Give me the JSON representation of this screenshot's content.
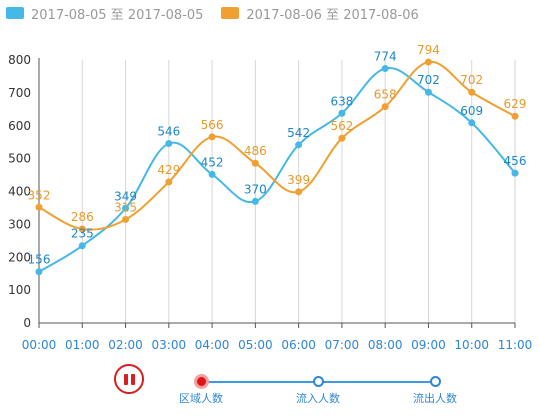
{
  "chart_data": {
    "type": "line",
    "categories": [
      "00:00",
      "01:00",
      "02:00",
      "03:00",
      "04:00",
      "05:00",
      "06:00",
      "07:00",
      "08:00",
      "09:00",
      "10:00",
      "11:00"
    ],
    "series": [
      {
        "name": "2017-08-05 至 2017-08-05",
        "color": "#45b8e8",
        "label_color": "#1e86c8",
        "values": [
          156,
          235,
          349,
          546,
          452,
          370,
          542,
          638,
          774,
          702,
          609,
          456
        ]
      },
      {
        "name": "2017-08-06 至 2017-08-06",
        "color": "#f0a030",
        "label_color": "#e89a2c",
        "values": [
          352,
          286,
          315,
          429,
          566,
          486,
          399,
          562,
          658,
          794,
          702,
          629
        ]
      }
    ],
    "yticks": [
      0,
      100,
      200,
      300,
      400,
      500,
      600,
      700,
      800
    ],
    "ylim": [
      0,
      800
    ],
    "legend_position": "top-left",
    "grid": "vertical"
  },
  "timeline": {
    "stops": [
      "区域人数",
      "流入人数",
      "流出人数"
    ],
    "active_index": 0,
    "state": "playing"
  }
}
